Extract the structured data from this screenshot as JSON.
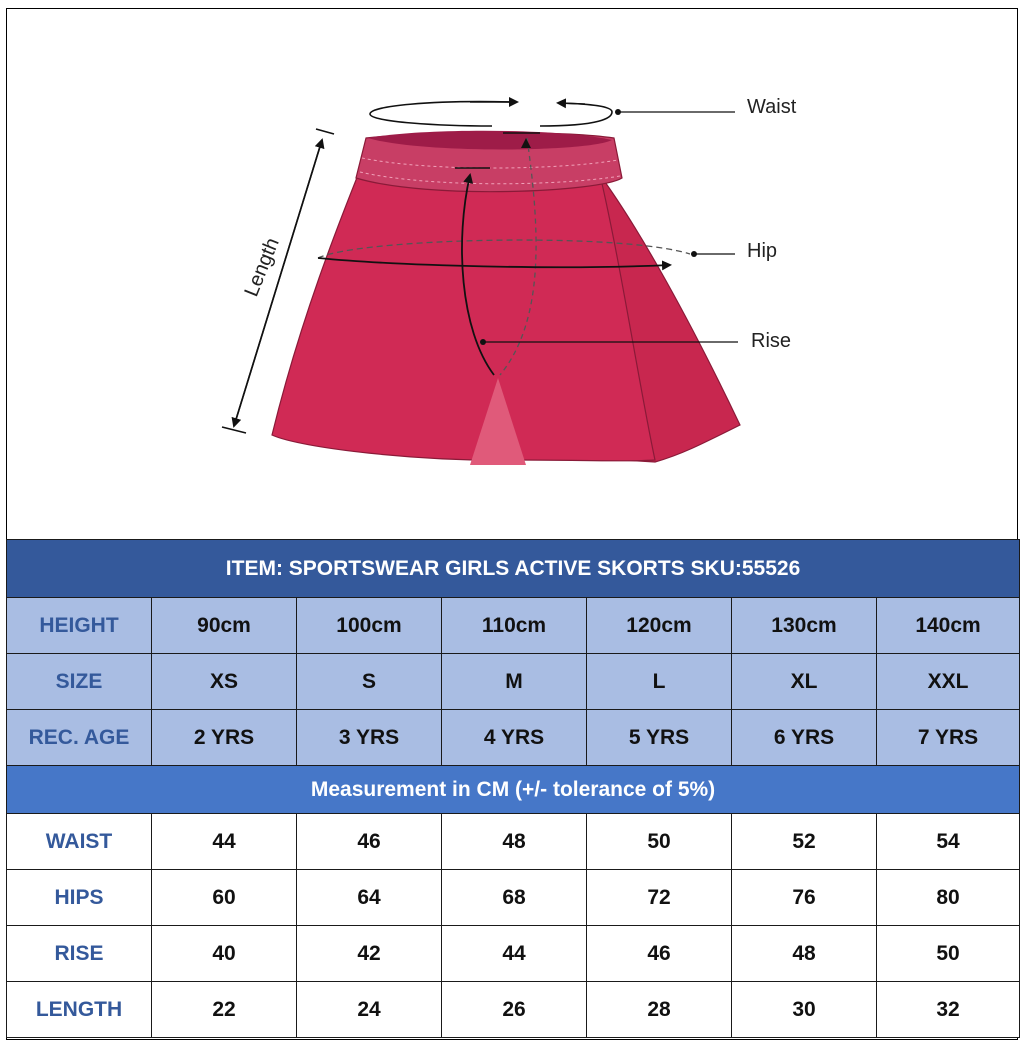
{
  "diagram": {
    "labels": {
      "waist": "Waist",
      "hip": "Hip",
      "rise": "Rise",
      "length": "Length"
    },
    "colors": {
      "skirt": "#d02a55",
      "waistband": "#c83e65",
      "inner_band": "#9e1c48",
      "slit": "#e05a7a"
    }
  },
  "table": {
    "title": "ITEM: SPORTSWEAR GIRLS ACTIVE SKORTS  SKU:55526",
    "spec_rows": [
      {
        "label": "HEIGHT",
        "values": [
          "90cm",
          "100cm",
          "110cm",
          "120cm",
          "130cm",
          "140cm"
        ]
      },
      {
        "label": "SIZE",
        "values": [
          "XS",
          "S",
          "M",
          "L",
          "XL",
          "XXL"
        ]
      },
      {
        "label": "REC. AGE",
        "values": [
          "2 YRS",
          "3 YRS",
          "4 YRS",
          "5 YRS",
          "6 YRS",
          "7 YRS"
        ]
      }
    ],
    "band": "Measurement in CM (+/- tolerance of 5%)",
    "measure_rows": [
      {
        "label": "WAIST",
        "values": [
          "44",
          "46",
          "48",
          "50",
          "52",
          "54"
        ]
      },
      {
        "label": "HIPS",
        "values": [
          "60",
          "64",
          "68",
          "72",
          "76",
          "80"
        ]
      },
      {
        "label": "RISE",
        "values": [
          "40",
          "42",
          "44",
          "46",
          "48",
          "50"
        ]
      },
      {
        "label": "LENGTH",
        "values": [
          "22",
          "24",
          "26",
          "28",
          "30",
          "32"
        ]
      }
    ],
    "colors": {
      "title_bg": "#34599b",
      "spec_bg": "#a9bde3",
      "band_bg": "#4677c8",
      "label_text": "#34599b"
    }
  }
}
